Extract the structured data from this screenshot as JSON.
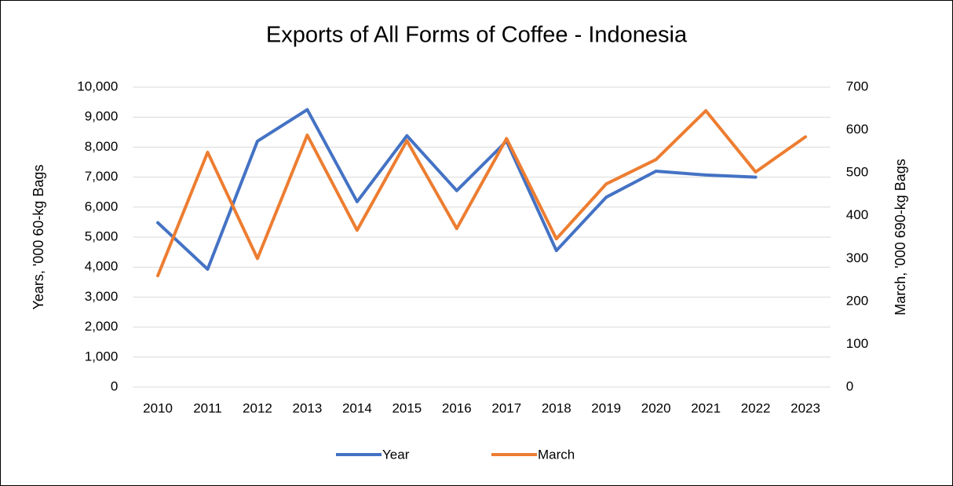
{
  "chart_data": {
    "type": "line",
    "title": "Exports of All Forms of Coffee - Indonesia",
    "y_label": "Years, '000 60-kg Bags",
    "y2_label": "March, '000 690-kg Bags",
    "categories": [
      "2010",
      "2011",
      "2012",
      "2013",
      "2014",
      "2015",
      "2016",
      "2017",
      "2018",
      "2019",
      "2020",
      "2021",
      "2022",
      "2023"
    ],
    "series": [
      {
        "name": "Year",
        "color": "#4472c4",
        "values": [
          5480,
          3930,
          8200,
          9250,
          6180,
          8380,
          6550,
          8200,
          4550,
          6330,
          7200,
          7070,
          7000,
          null
        ]
      },
      {
        "name": "March",
        "color": "#ed7d31",
        "axis": "y2",
        "values": [
          260,
          548,
          300,
          588,
          366,
          575,
          370,
          580,
          346,
          474,
          531,
          645,
          502,
          584
        ]
      }
    ],
    "ylim": [
      0,
      10000
    ],
    "yticks": [
      0,
      {
        "value": 1000,
        "label": "1,000"
      },
      {
        "value": 2000,
        "label": "2,000"
      },
      {
        "value": 3000,
        "label": "3,000"
      },
      {
        "value": 4000,
        "label": "4,000"
      },
      {
        "value": 5000,
        "label": "5,000"
      },
      {
        "value": 6000,
        "label": "6,000"
      },
      {
        "value": 7000,
        "label": "7,000"
      },
      {
        "value": 8000,
        "label": "8,000"
      },
      {
        "value": 9000,
        "label": "9,000"
      },
      {
        "value": 10000,
        "label": "10,000"
      }
    ],
    "y2lim": [
      0,
      700
    ],
    "y2ticks": [
      0,
      100,
      200,
      300,
      400,
      500,
      600,
      700
    ],
    "grid": true,
    "legend": "bottom"
  }
}
